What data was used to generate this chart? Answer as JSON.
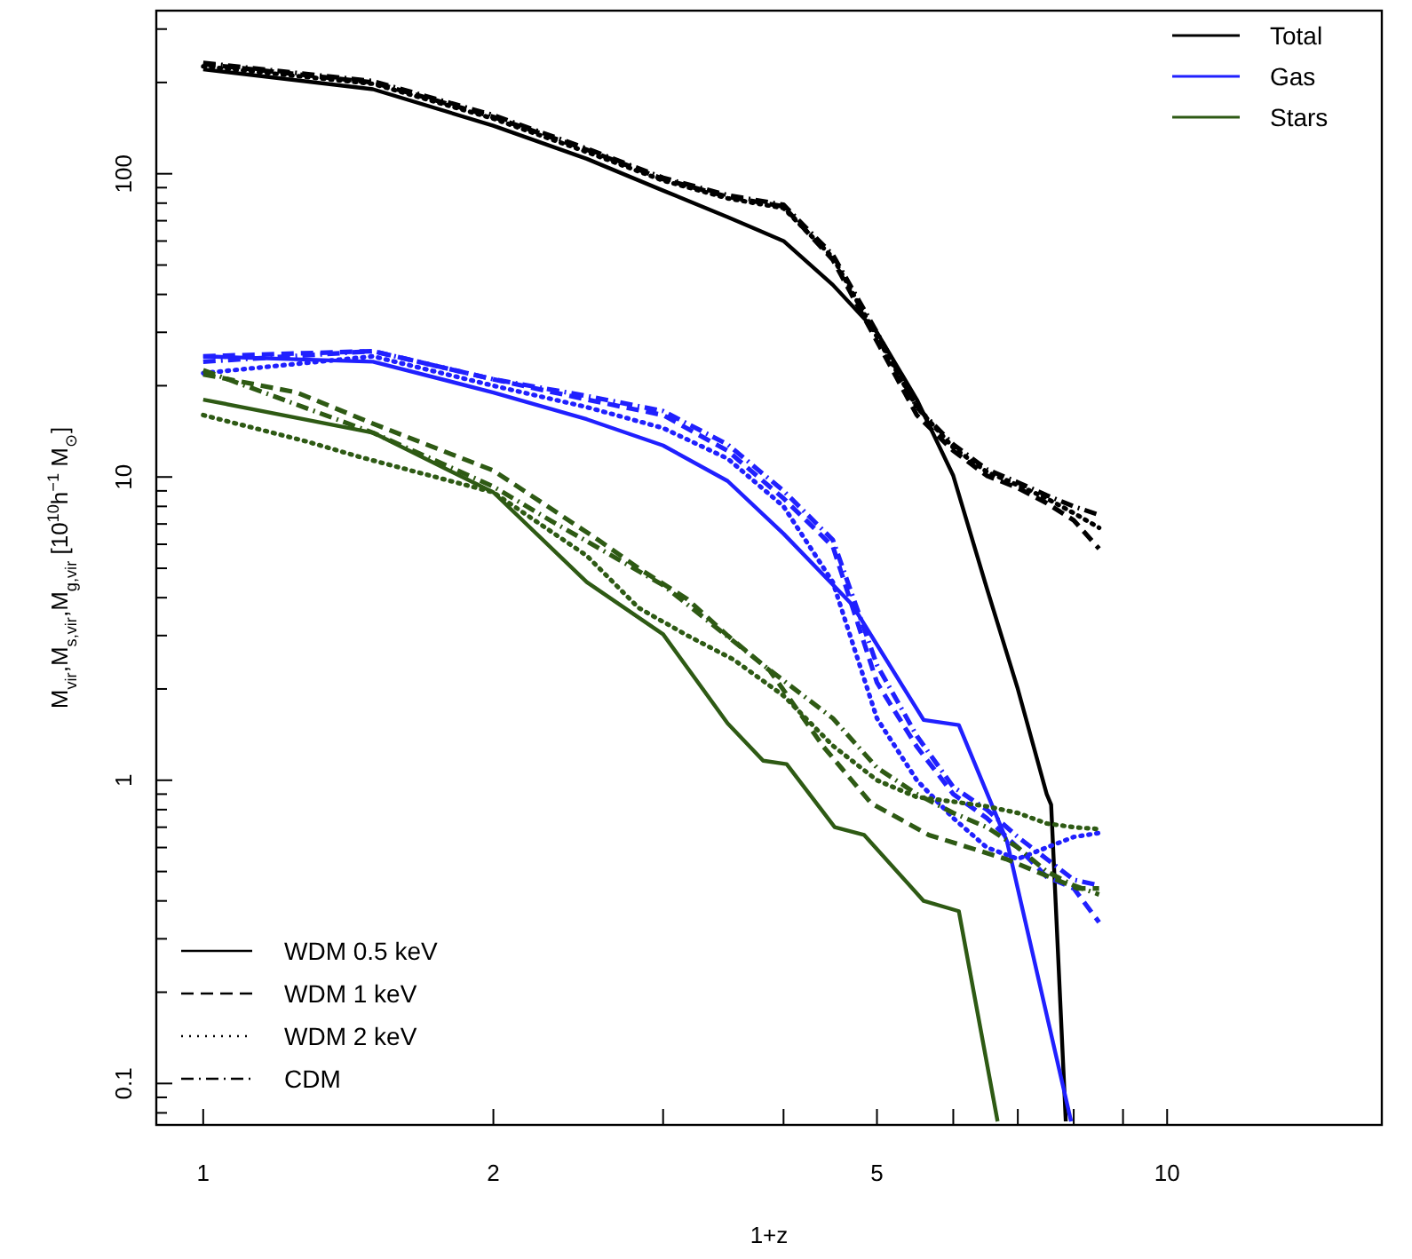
{
  "chart_data": {
    "type": "line",
    "xlabel": "1+z",
    "ylabel": "M$_{vir}$,M$_{s,vir}$,M$_{g,vir}$ [10$^{10}$h$^{−1}$ M$_{⊙}$]",
    "log": "xy",
    "xlim": [
      0.894,
      16.7
    ],
    "ylim": [
      0.073,
      345
    ],
    "xticks": [
      1,
      2,
      {
        "value": 3,
        "label": null
      },
      {
        "value": 4,
        "label": null
      },
      5,
      {
        "value": 6,
        "label": null
      },
      {
        "value": 7,
        "label": null
      },
      {
        "value": 8,
        "label": null
      },
      {
        "value": 9,
        "label": null
      },
      10
    ],
    "yticks": [
      {
        "value": 0.08,
        "label": null
      },
      {
        "value": 0.09,
        "label": null
      },
      0.1,
      {
        "value": 0.2,
        "label": null
      },
      {
        "value": 0.3,
        "label": null
      },
      {
        "value": 0.4,
        "label": null
      },
      {
        "value": 0.5,
        "label": null
      },
      {
        "value": 0.6,
        "label": null
      },
      {
        "value": 0.7,
        "label": null
      },
      {
        "value": 0.8,
        "label": null
      },
      {
        "value": 0.9,
        "label": null
      },
      1,
      {
        "value": 2,
        "label": null
      },
      {
        "value": 3,
        "label": null
      },
      {
        "value": 4,
        "label": null
      },
      {
        "value": 5,
        "label": null
      },
      {
        "value": 6,
        "label": null
      },
      {
        "value": 7,
        "label": null
      },
      {
        "value": 8,
        "label": null
      },
      {
        "value": 9,
        "label": null
      },
      10,
      {
        "value": 20,
        "label": null
      },
      {
        "value": 30,
        "label": null
      },
      {
        "value": 40,
        "label": null
      },
      {
        "value": 50,
        "label": null
      },
      {
        "value": 60,
        "label": null
      },
      {
        "value": 70,
        "label": null
      },
      {
        "value": 80,
        "label": null
      },
      {
        "value": 90,
        "label": null
      },
      100,
      {
        "value": 200,
        "label": null
      },
      {
        "value": 300,
        "label": null
      }
    ],
    "grid": false,
    "legend": "top right",
    "marker": "none",
    "annotations": [
      "WDM 0.5 keV",
      "WDM 1 keV",
      "WDM 2 keV",
      "CDM"
    ],
    "series": [
      {
        "name": "Total",
        "color": "#000000",
        "line_style": "solid",
        "x": [
          1,
          1.5,
          2,
          2.5,
          3,
          3.5,
          4,
          4.5,
          5,
          5.5,
          6,
          6.5,
          7,
          7.5,
          7.58,
          7.85
        ],
        "values": [
          221,
          190,
          144,
          112,
          88,
          72,
          60,
          43,
          30,
          18,
          10.1,
          4.3,
          2.0,
          0.9,
          0.83,
          0.075
        ]
      },
      {
        "color": "#000000",
        "line_style": "dashed",
        "x": [
          1,
          1.5,
          2,
          2.5,
          3,
          3.5,
          4,
          4.5,
          5,
          5.5,
          6,
          6.5,
          7,
          7.5,
          8,
          8.5
        ],
        "values": [
          230,
          200,
          154,
          120,
          96,
          84,
          78,
          52,
          28,
          16,
          12.2,
          10.1,
          9.2,
          8.2,
          7.2,
          5.8
        ]
      },
      {
        "color": "#000000",
        "line_style": "dotted",
        "x": [
          1,
          1.5,
          2,
          2.5,
          3,
          3.5,
          4,
          4.5,
          5,
          5.5,
          6,
          6.5,
          7,
          7.5,
          8,
          8.5
        ],
        "values": [
          226,
          198,
          152,
          118,
          95,
          83,
          77,
          53,
          29,
          17,
          12.5,
          10.4,
          9.4,
          8.5,
          7.6,
          6.8
        ]
      },
      {
        "color": "#000000",
        "line_style": "dashdot",
        "x": [
          1,
          1.5,
          2,
          2.5,
          3,
          3.5,
          4,
          4.5,
          5,
          5.5,
          6,
          6.5,
          7,
          7.5,
          8,
          8.5
        ],
        "values": [
          232,
          202,
          156,
          121,
          97,
          85,
          79,
          54,
          30,
          17,
          12.8,
          10.6,
          9.6,
          8.7,
          8.0,
          7.5
        ]
      },
      {
        "name": "Gas",
        "color": "#2020ff",
        "line_style": "solid",
        "x": [
          1,
          1.5,
          2,
          2.5,
          3,
          3.5,
          4,
          4.71,
          5.59,
          6.08,
          6.82,
          7.95
        ],
        "values": [
          25,
          24,
          19,
          15.5,
          12.7,
          9.7,
          6.5,
          3.8,
          1.58,
          1.52,
          0.63,
          0.075
        ]
      },
      {
        "color": "#2020ff",
        "line_style": "dashed",
        "x": [
          1,
          1.5,
          2,
          2.5,
          3,
          3.5,
          4,
          4.5,
          5,
          5.5,
          6,
          6.5,
          7,
          7.5,
          8,
          8.5
        ],
        "values": [
          25,
          26,
          21,
          18,
          16,
          12.2,
          8.5,
          5.9,
          2.1,
          1.29,
          0.9,
          0.75,
          0.6,
          0.48,
          0.44,
          0.34
        ]
      },
      {
        "color": "#2020ff",
        "line_style": "dotted",
        "x": [
          1,
          1.5,
          2,
          2.5,
          3,
          3.5,
          4,
          4.5,
          5,
          5.5,
          6,
          6.5,
          7,
          7.5,
          8,
          8.5
        ],
        "values": [
          22,
          25,
          20,
          17,
          14.5,
          11.5,
          8,
          4.5,
          1.6,
          1.0,
          0.75,
          0.6,
          0.55,
          0.6,
          0.65,
          0.67
        ]
      },
      {
        "color": "#2020ff",
        "line_style": "dashdot",
        "x": [
          1,
          1.5,
          2,
          2.5,
          3,
          3.5,
          4,
          4.5,
          5,
          5.5,
          6,
          6.5,
          7,
          7.5,
          8,
          8.5
        ],
        "values": [
          24,
          26,
          21,
          18.5,
          16.5,
          12.8,
          9,
          6.2,
          2.4,
          1.4,
          0.95,
          0.8,
          0.65,
          0.55,
          0.47,
          0.45
        ]
      },
      {
        "name": "Stars",
        "color": "#2e5a14",
        "line_style": "solid",
        "x": [
          1,
          1.5,
          2,
          2.5,
          3,
          3.5,
          3.81,
          4.03,
          4.52,
          4.85,
          5.59,
          6.08,
          6.67
        ],
        "values": [
          18,
          14,
          8.9,
          4.5,
          3.03,
          1.54,
          1.16,
          1.13,
          0.7,
          0.66,
          0.4,
          0.37,
          0.075
        ]
      },
      {
        "color": "#2e5a14",
        "line_style": "dashed",
        "x": [
          1,
          1.25,
          1.5,
          2,
          2.57,
          2.83,
          3.18,
          3.5,
          3.87,
          4.4,
          4.93,
          5.66,
          6.8,
          8.07,
          8.5
        ],
        "values": [
          21.8,
          19,
          15,
          10.5,
          6.2,
          5.0,
          3.95,
          3.0,
          2.3,
          1.29,
          0.84,
          0.66,
          0.55,
          0.44,
          0.44
        ]
      },
      {
        "color": "#2e5a14",
        "line_style": "dotted",
        "x": [
          1,
          1.28,
          1.46,
          2,
          2.5,
          2.83,
          3.18,
          3.55,
          4,
          4.5,
          5,
          5.5,
          6,
          6.5,
          7,
          7.5,
          8,
          8.5
        ],
        "values": [
          16,
          13.1,
          11.6,
          8.9,
          5.5,
          3.7,
          3.0,
          2.5,
          1.9,
          1.3,
          1.0,
          0.88,
          0.85,
          0.82,
          0.78,
          0.72,
          0.7,
          0.69
        ]
      },
      {
        "color": "#2e5a14",
        "line_style": "dashdot",
        "x": [
          1,
          1.5,
          2,
          2.29,
          3,
          3.81,
          4.5,
          5,
          5.5,
          6,
          6.5,
          7,
          7.5,
          8,
          8.5
        ],
        "values": [
          22.5,
          14,
          9.3,
          7.2,
          4.4,
          2.4,
          1.6,
          1.1,
          0.9,
          0.78,
          0.7,
          0.6,
          0.5,
          0.45,
          0.42
        ]
      }
    ]
  }
}
